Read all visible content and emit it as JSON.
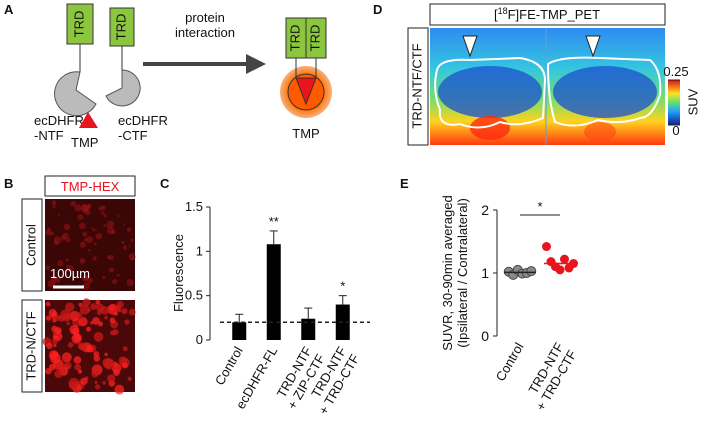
{
  "panel_a": {
    "letter": "A",
    "trd_left": "TRD",
    "trd_right": "TRD",
    "ntf_label": "ecDHFR\n-NTF",
    "ctf_label": "ecDHFR\n-CTF",
    "tmp_left": "TMP",
    "arrow_label": "protein\ninteraction",
    "complex_trd": [
      "TRD",
      "TRD"
    ],
    "tmp_right": "TMP"
  },
  "panel_b": {
    "letter": "B",
    "stain": "TMP-HEX",
    "rows": [
      "Control",
      "TRD-N/CTF"
    ],
    "scale_bar": "100µm"
  },
  "panel_d": {
    "letter": "D",
    "title_open": "[",
    "title_sup": "18",
    "title_rest": "F]FE-TMP_PET",
    "row_label": "TRD-NTF/CTF",
    "colorbar_ticks": [
      0,
      0.25
    ],
    "colorbar_label": "SUV"
  },
  "chart_data": [
    {
      "type": "bar",
      "panel_label": "C",
      "ylabel": "Fluorescence",
      "categories": [
        "Control",
        "ecDHFR-FL",
        "TRD-NTF\n+ ZIP-CTF",
        "TRD-NTF\n+ TRD-CTF"
      ],
      "values": [
        0.2,
        1.08,
        0.24,
        0.4
      ],
      "errors": [
        0.09,
        0.15,
        0.12,
        0.1
      ],
      "color": "#000000",
      "reference_line": 0.2,
      "annotations": [
        {
          "category": "ecDHFR-FL",
          "text": "**"
        },
        {
          "category": "TRD-NTF\n+ TRD-CTF",
          "text": "*"
        }
      ],
      "ylim": [
        0,
        1.5
      ],
      "yticks": [
        0,
        0.5,
        1,
        1.5
      ]
    },
    {
      "type": "scatter",
      "panel_label": "E",
      "ylabel": "SUVR, 30-90min averaged\n(Ipsilateral / Contralateral)",
      "series": [
        {
          "name": "Control",
          "color": "#8a8a8a",
          "values": [
            1.02,
            0.97,
            1.05,
            0.99,
            1.0,
            1.03
          ],
          "median": 1.01
        },
        {
          "name": "TRD-NTF\n+ TRD-CTF",
          "color": "#e8141e",
          "values": [
            1.42,
            1.18,
            1.1,
            1.05,
            1.22,
            1.08,
            1.15
          ],
          "median": 1.15
        }
      ],
      "annotation": "*",
      "ylim": [
        0,
        2
      ],
      "yticks": [
        0,
        1,
        2
      ]
    }
  ]
}
